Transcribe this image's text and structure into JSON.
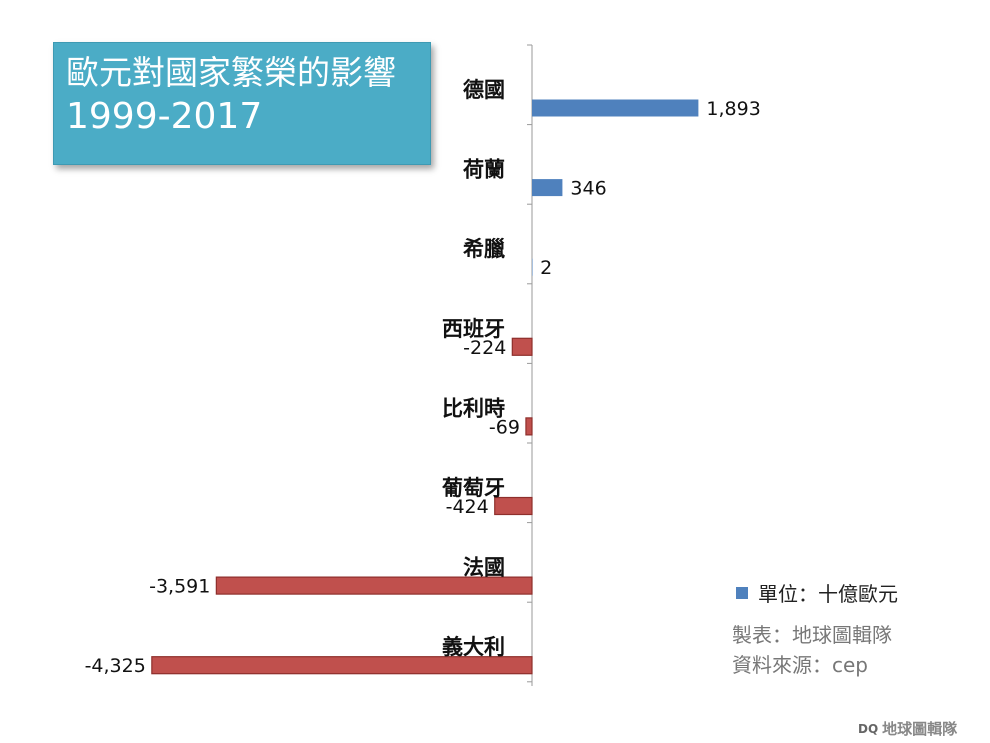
{
  "title": {
    "line1": "歐元對國家繁榮的影響",
    "line2": "1999-2017"
  },
  "chart_data": {
    "type": "bar",
    "orientation": "horizontal",
    "categories": [
      "德國",
      "荷蘭",
      "希臘",
      "西班牙",
      "比利時",
      "葡萄牙",
      "法國",
      "義大利"
    ],
    "values": [
      1893,
      346,
      2,
      -224,
      -69,
      -424,
      -3591,
      -4325
    ],
    "value_labels": [
      "1,893",
      "346",
      "2",
      "-224",
      "-69",
      "-424",
      "-3,591",
      "-4,325"
    ],
    "positive_color": "#4f81bd",
    "negative_color": "#c0504d",
    "legend_placement": "bottom-right",
    "grid": false
  },
  "legend": {
    "label": "單位：十億歐元"
  },
  "credits": {
    "made_by": "製表：地球圖輯隊",
    "source": "資料來源：cep"
  },
  "watermark": {
    "logo": "DQ",
    "text": "地球圖輯隊"
  }
}
